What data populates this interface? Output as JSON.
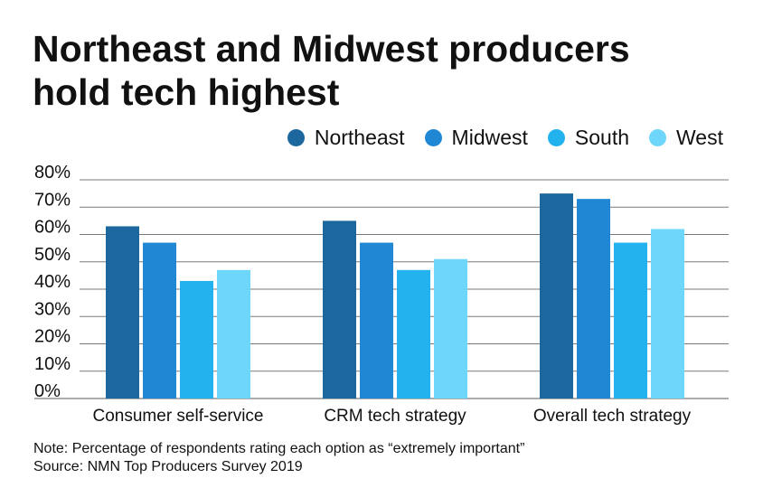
{
  "title_lines": [
    "Northeast and Midwest producers",
    "hold tech highest"
  ],
  "colors": {
    "Northeast": "#1c679e",
    "Midwest": "#1f87d3",
    "South": "#22b3ef",
    "West": "#6fd6fb",
    "grid": "#7a7a7a",
    "text": "#111111"
  },
  "chart_data": {
    "type": "bar",
    "title": "Northeast and Midwest producers hold tech highest",
    "categories": [
      "Consumer self-service",
      "CRM tech strategy",
      "Overall tech strategy"
    ],
    "series": [
      {
        "name": "Northeast",
        "values": [
          63,
          65,
          75
        ]
      },
      {
        "name": "Midwest",
        "values": [
          57,
          57,
          73
        ]
      },
      {
        "name": "South",
        "values": [
          43,
          47,
          57
        ]
      },
      {
        "name": "West",
        "values": [
          47,
          51,
          62
        ]
      }
    ],
    "ylim": [
      0,
      80
    ],
    "yticks": [
      0,
      10,
      20,
      30,
      40,
      50,
      60,
      70,
      80
    ],
    "ytick_labels": [
      "0%",
      "10%",
      "20%",
      "30%",
      "40%",
      "50%",
      "60%",
      "70%",
      "80%"
    ],
    "xlabel": "",
    "ylabel": "",
    "grid": true,
    "legend_position": "top-right"
  },
  "notes": {
    "note": "Note: Percentage of respondents rating each option as “extremely important”",
    "source": "Source: NMN Top Producers Survey 2019"
  }
}
